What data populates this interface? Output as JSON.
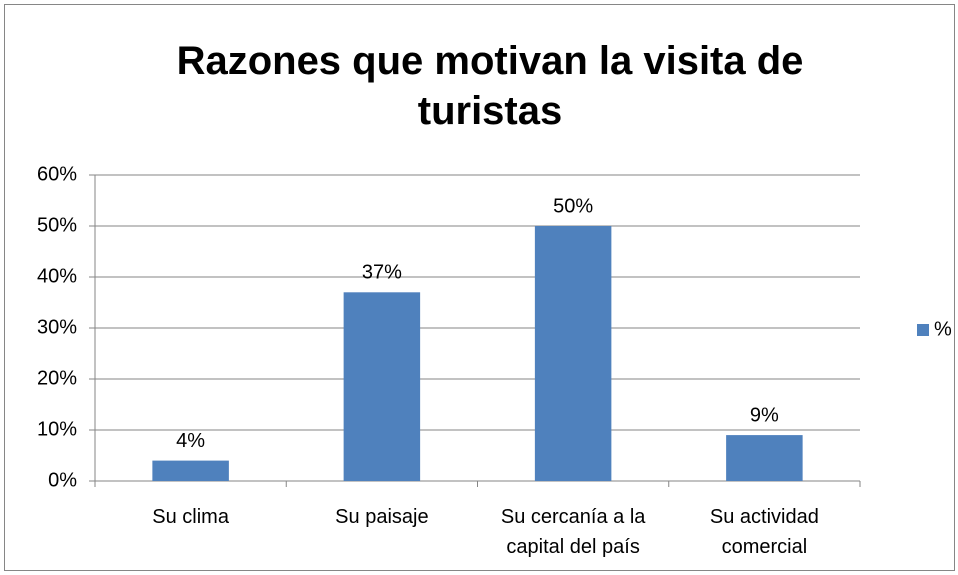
{
  "chart_data": {
    "type": "bar",
    "title": "Razones que motivan la visita de turistas",
    "categories": [
      "Su clima",
      "Su paisaje",
      "Su cercanía a la capital del país",
      "Su actividad comercial"
    ],
    "series": [
      {
        "name": "%",
        "color": "#4f81bd",
        "values": [
          4,
          37,
          50,
          9
        ],
        "value_labels": [
          "4%",
          "37%",
          "50%",
          "9%"
        ]
      }
    ],
    "ylim": [
      0,
      60
    ],
    "yticks": [
      {
        "value": 0,
        "label": "0%"
      },
      {
        "value": 10,
        "label": "10%"
      },
      {
        "value": 20,
        "label": "20%"
      },
      {
        "value": 30,
        "label": "30%"
      },
      {
        "value": 40,
        "label": "40%"
      },
      {
        "value": 50,
        "label": "50%"
      },
      {
        "value": 60,
        "label": "60%"
      }
    ],
    "grid": true,
    "legend": "right"
  }
}
